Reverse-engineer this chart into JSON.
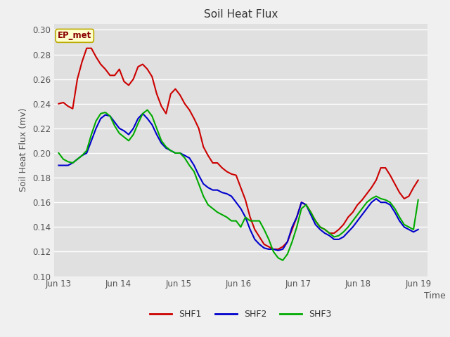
{
  "title": "Soil Heat Flux",
  "xlabel": "Time",
  "ylabel": "Soil Heat Flux (mv)",
  "ylim": [
    0.1,
    0.305
  ],
  "yticks": [
    0.1,
    0.12,
    0.14,
    0.16,
    0.18,
    0.2,
    0.22,
    0.24,
    0.26,
    0.28,
    0.3
  ],
  "annotation_text": "EP_met",
  "fig_bg_color": "#f0f0f0",
  "plot_bg_color": "#e0e0e0",
  "shf1_color": "#cc0000",
  "shf2_color": "#0000cc",
  "shf3_color": "#00aa00",
  "line_width": 1.5,
  "shf1": [
    0.24,
    0.241,
    0.238,
    0.236,
    0.26,
    0.274,
    0.285,
    0.285,
    0.278,
    0.272,
    0.268,
    0.263,
    0.263,
    0.268,
    0.258,
    0.255,
    0.26,
    0.27,
    0.272,
    0.268,
    0.262,
    0.248,
    0.238,
    0.232,
    0.248,
    0.252,
    0.247,
    0.24,
    0.235,
    0.228,
    0.22,
    0.205,
    0.198,
    0.192,
    0.192,
    0.188,
    0.185,
    0.183,
    0.182,
    0.172,
    0.162,
    0.148,
    0.138,
    0.132,
    0.126,
    0.124,
    0.122,
    0.122,
    0.124,
    0.128,
    0.138,
    0.148,
    0.16,
    0.158,
    0.152,
    0.145,
    0.14,
    0.138,
    0.135,
    0.135,
    0.138,
    0.142,
    0.148,
    0.152,
    0.158,
    0.162,
    0.167,
    0.172,
    0.178,
    0.188,
    0.188,
    0.182,
    0.175,
    0.168,
    0.163,
    0.165,
    0.172,
    0.178
  ],
  "shf2": [
    0.19,
    0.19,
    0.19,
    0.192,
    0.195,
    0.198,
    0.2,
    0.21,
    0.22,
    0.228,
    0.231,
    0.23,
    0.225,
    0.22,
    0.218,
    0.215,
    0.22,
    0.228,
    0.232,
    0.228,
    0.223,
    0.215,
    0.208,
    0.204,
    0.202,
    0.2,
    0.2,
    0.198,
    0.196,
    0.19,
    0.182,
    0.175,
    0.172,
    0.17,
    0.17,
    0.168,
    0.167,
    0.165,
    0.16,
    0.155,
    0.148,
    0.138,
    0.13,
    0.126,
    0.123,
    0.122,
    0.122,
    0.121,
    0.122,
    0.128,
    0.14,
    0.148,
    0.16,
    0.158,
    0.15,
    0.142,
    0.138,
    0.135,
    0.133,
    0.13,
    0.13,
    0.132,
    0.136,
    0.14,
    0.145,
    0.15,
    0.155,
    0.16,
    0.163,
    0.16,
    0.16,
    0.158,
    0.152,
    0.145,
    0.14,
    0.138,
    0.136,
    0.138
  ],
  "shf3": [
    0.2,
    0.195,
    0.193,
    0.192,
    0.195,
    0.198,
    0.202,
    0.215,
    0.226,
    0.232,
    0.233,
    0.23,
    0.222,
    0.216,
    0.213,
    0.21,
    0.215,
    0.224,
    0.232,
    0.235,
    0.23,
    0.22,
    0.21,
    0.205,
    0.202,
    0.2,
    0.2,
    0.196,
    0.19,
    0.185,
    0.175,
    0.165,
    0.158,
    0.155,
    0.152,
    0.15,
    0.148,
    0.145,
    0.145,
    0.14,
    0.148,
    0.145,
    0.145,
    0.145,
    0.138,
    0.13,
    0.12,
    0.115,
    0.113,
    0.118,
    0.128,
    0.14,
    0.155,
    0.158,
    0.152,
    0.145,
    0.14,
    0.138,
    0.135,
    0.132,
    0.133,
    0.136,
    0.14,
    0.145,
    0.15,
    0.155,
    0.16,
    0.163,
    0.165,
    0.163,
    0.162,
    0.16,
    0.155,
    0.148,
    0.142,
    0.14,
    0.138,
    0.162
  ],
  "xtick_labels": [
    "Jun 13",
    "Jun 14",
    "Jun 15",
    "Jun 16",
    "Jun 17",
    "Jun 18",
    "Jun 19"
  ],
  "num_points": 78
}
